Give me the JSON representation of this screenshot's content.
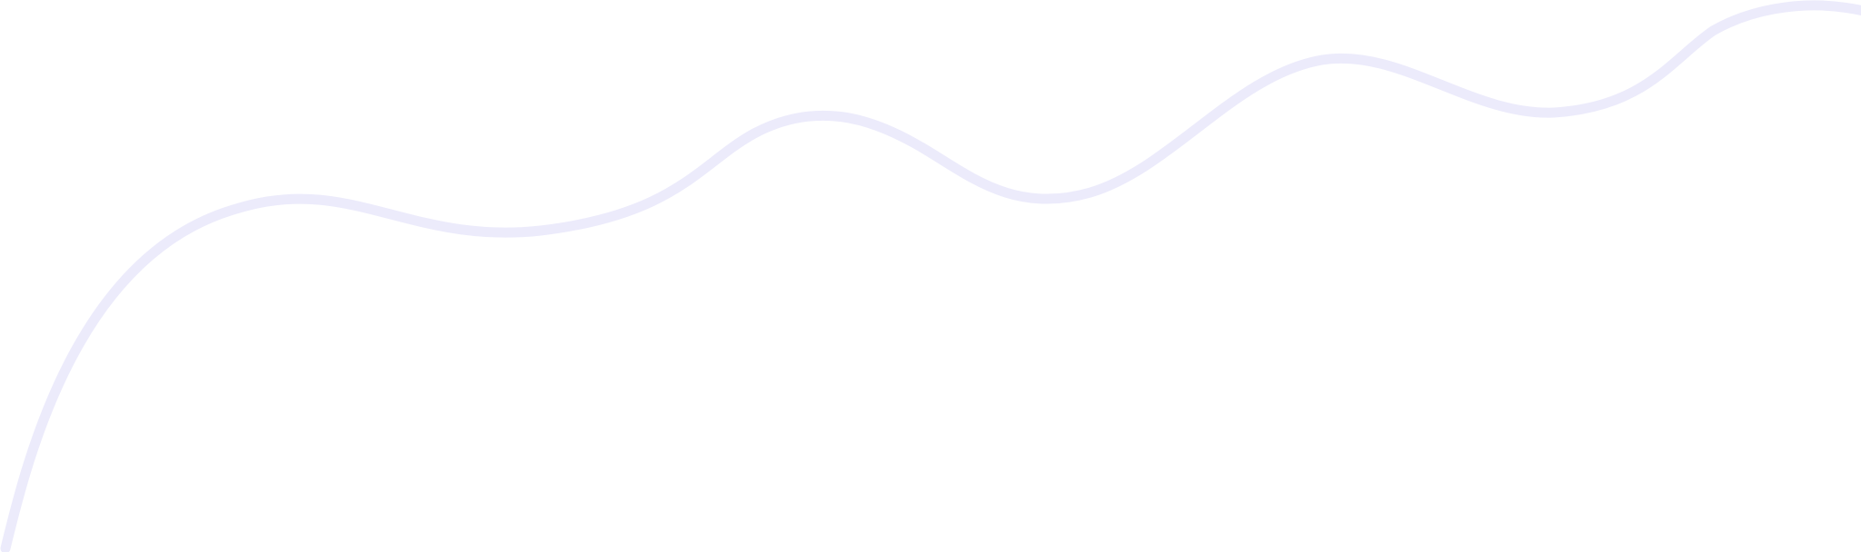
{
  "decoration": {
    "shape": "wavy-line",
    "stroke_color": "#ECEBFB",
    "background_color": "#FFFFFF"
  }
}
